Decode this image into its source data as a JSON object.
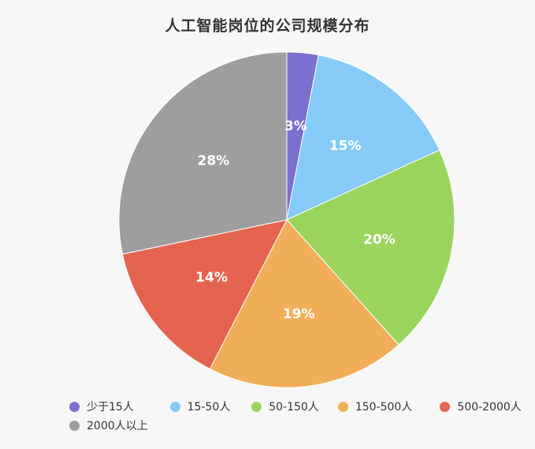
{
  "chart_data": {
    "type": "pie",
    "title": "人工智能岗位的公司规模分布",
    "categories": [
      "少于15人",
      "15-50人",
      "50-150人",
      "150-500人",
      "500-2000人",
      "2000人以上"
    ],
    "values": [
      3,
      15,
      20,
      19,
      14,
      28
    ],
    "value_labels": [
      "3%",
      "15%",
      "20%",
      "19%",
      "14%",
      "28%"
    ],
    "colors": [
      "#7b6fd0",
      "#85caf8",
      "#9ad45d",
      "#f1ae58",
      "#e5644f",
      "#9e9e9e"
    ],
    "legend": "bottom"
  }
}
